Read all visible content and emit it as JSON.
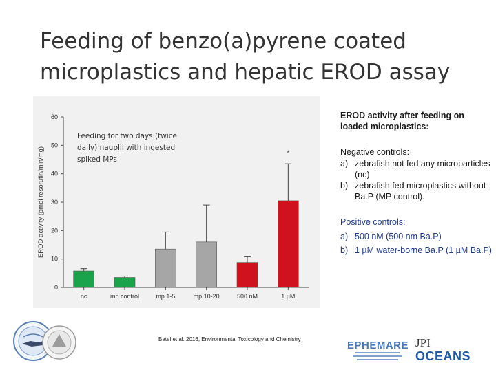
{
  "slide": {
    "title": "Feeding of benzo(a)pyrene coated microplastics and hepatic EROD assay",
    "citation": "Batel et al. 2016, Environmental Toxicology and Chemistry"
  },
  "chart_note": "Feeding for two days (twice daily) nauplii with ingested spiked MPs",
  "right_panel": {
    "heading": "EROD activity after feeding on loaded microplastics:",
    "negative_heading": "Negative controls:",
    "negative_items": [
      {
        "marker": "a)",
        "text": "zebrafish not fed any microparticles (nc)"
      },
      {
        "marker": "b)",
        "text": "zebrafish fed microplastics without Ba.P (MP control)."
      }
    ],
    "positive_heading": "Positive controls:",
    "positive_items": [
      {
        "marker": "a)",
        "text": "500 nM (500 nm Ba.P)"
      },
      {
        "marker": "b)",
        "text": "1 µM water-borne Ba.P (1 µM Ba.P)"
      }
    ]
  },
  "logos": {
    "ephemare": "EPHEMARE",
    "jpi": "JPI",
    "oceans": "OCEANS"
  },
  "chart_data": {
    "type": "bar",
    "categories": [
      "nc",
      "mp control",
      "mp 1-5",
      "mp 10-20",
      "500 nM",
      "1 µM"
    ],
    "values": [
      5.8,
      3.5,
      13.5,
      16.0,
      8.8,
      30.5
    ],
    "errors": [
      0.8,
      0.5,
      6.0,
      13.0,
      2.0,
      13.0
    ],
    "colors": [
      "#1aa34a",
      "#1aa34a",
      "#a6a6a6",
      "#a6a6a6",
      "#d0121e",
      "#d0121e"
    ],
    "significance": [
      {
        "category": "1 µM",
        "mark": "*"
      }
    ],
    "ylabel": "EROD activity (pmol resorufin/min/mg)",
    "ylim": [
      0,
      60
    ],
    "yticks": [
      0,
      10,
      20,
      30,
      40,
      50,
      60
    ],
    "xlabel": "",
    "grid": false
  }
}
